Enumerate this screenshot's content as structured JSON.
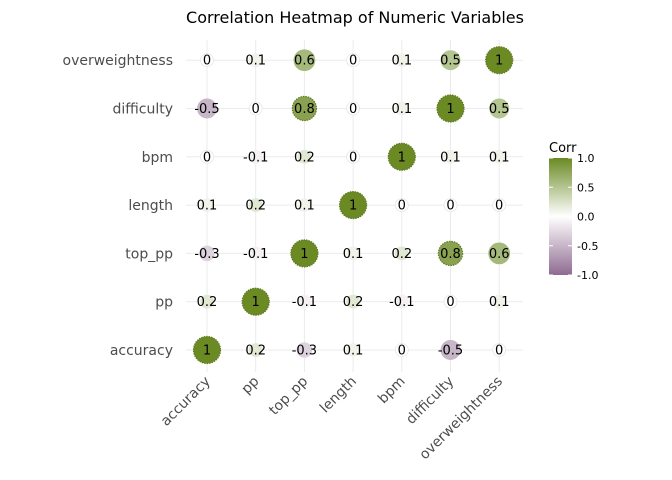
{
  "chart_data": {
    "type": "heatmap",
    "title": "Correlation Heatmap of Numeric Variables",
    "x_categories": [
      "accuracy",
      "pp",
      "top_pp",
      "length",
      "bpm",
      "difficulty",
      "overweightness"
    ],
    "y_categories": [
      "accuracy",
      "pp",
      "top_pp",
      "length",
      "bpm",
      "difficulty",
      "overweightness"
    ],
    "matrix": [
      [
        1,
        0.2,
        -0.3,
        0.1,
        0,
        -0.5,
        0
      ],
      [
        0.2,
        1,
        -0.1,
        0.2,
        -0.1,
        0,
        0.1
      ],
      [
        -0.3,
        -0.1,
        1,
        0.1,
        0.2,
        0.8,
        0.6
      ],
      [
        0.1,
        0.2,
        0.1,
        1,
        0,
        0,
        0
      ],
      [
        0,
        -0.1,
        0.2,
        0,
        1,
        0.1,
        0.1
      ],
      [
        -0.5,
        0,
        0.8,
        0,
        0.1,
        1,
        0.5
      ],
      [
        0,
        0.1,
        0.6,
        0,
        0.1,
        0.5,
        1
      ]
    ],
    "legend": {
      "title": "Corr",
      "ticks": [
        "1.0",
        "0.5",
        "0.0",
        "-0.5",
        "-1.0"
      ],
      "tick_values": [
        1,
        0.5,
        0,
        -0.5,
        -1
      ],
      "range": [
        -1,
        1
      ],
      "placement": "right"
    },
    "colors": {
      "low": "#8e6b91",
      "mid": "#ffffff",
      "high": "#6b8a24"
    },
    "grid": true
  }
}
